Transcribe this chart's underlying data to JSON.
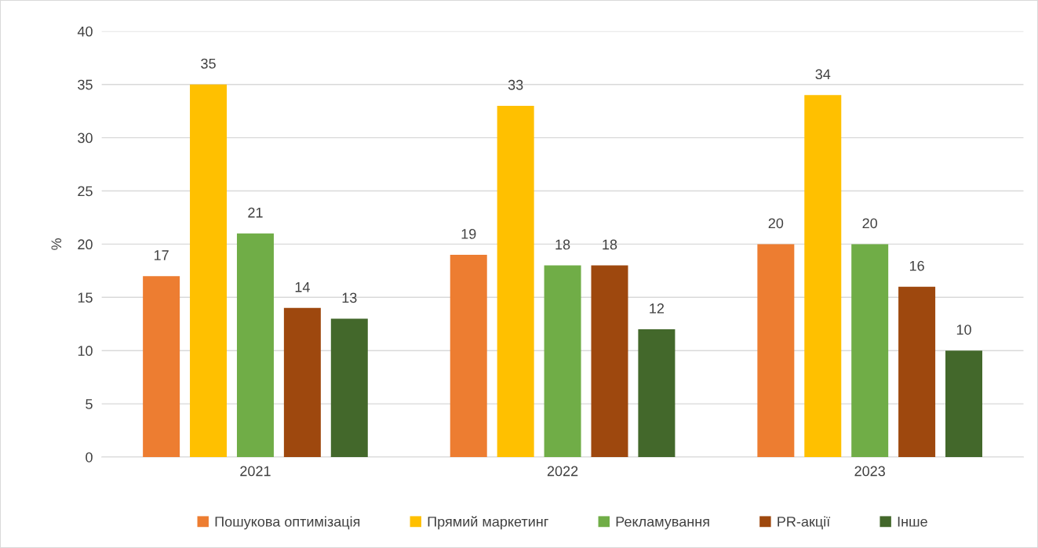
{
  "chart_data": {
    "type": "bar",
    "ylabel": "%",
    "categories": [
      "2021",
      "2022",
      "2023"
    ],
    "series": [
      {
        "name": "Пошукова оптимізація",
        "color": "#ed7d31",
        "values": [
          17,
          19,
          20
        ]
      },
      {
        "name": "Прямий маркетинг",
        "color": "#ffc000",
        "values": [
          35,
          33,
          34
        ]
      },
      {
        "name": "Рекламування",
        "color": "#70ad47",
        "values": [
          21,
          18,
          20
        ]
      },
      {
        "name": "PR-акції",
        "color": "#9e480e",
        "values": [
          14,
          18,
          16
        ]
      },
      {
        "name": "Інше",
        "color": "#43682b",
        "values": [
          13,
          12,
          10
        ]
      }
    ],
    "ylim": [
      0,
      40
    ],
    "yticks": [
      0,
      5,
      10,
      15,
      20,
      25,
      30,
      35,
      40
    ],
    "grid": "y",
    "legend": "bottom",
    "data_labels": true
  }
}
